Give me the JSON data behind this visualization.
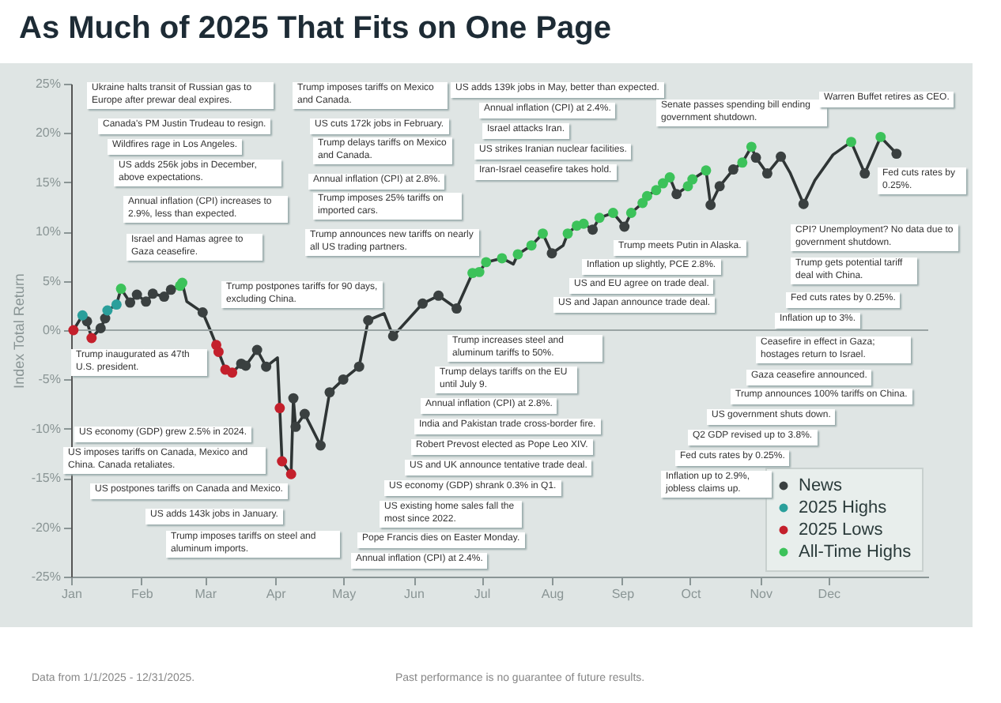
{
  "chart_data": {
    "type": "line",
    "title": "As Much of 2025 That Fits on One Page",
    "ylabel": "Index Total Return",
    "xlim": [
      "2025-01-01",
      "2026-01-14"
    ],
    "xticks": [
      {
        "value": "2025-01-01",
        "label": "Jan"
      },
      {
        "value": "2025-02-01",
        "label": "Feb"
      },
      {
        "value": "2025-03-01",
        "label": "Mar"
      },
      {
        "value": "2025-04-01",
        "label": "Apr"
      },
      {
        "value": "2025-05-01",
        "label": "May"
      },
      {
        "value": "2025-06-01",
        "label": "Jun"
      },
      {
        "value": "2025-07-01",
        "label": "Jul"
      },
      {
        "value": "2025-08-01",
        "label": "Aug"
      },
      {
        "value": "2025-09-01",
        "label": "Sep"
      },
      {
        "value": "2025-10-01",
        "label": "Oct"
      },
      {
        "value": "2025-11-01",
        "label": "Nov"
      },
      {
        "value": "2025-12-01",
        "label": "Dec"
      }
    ],
    "ylim": [
      -25,
      25
    ],
    "yticks": [
      {
        "value": -25,
        "label": "-25%"
      },
      {
        "value": -20,
        "label": "-20%"
      },
      {
        "value": -15,
        "label": "-15%"
      },
      {
        "value": -10,
        "label": "-10%"
      },
      {
        "value": -5,
        "label": "-5%"
      },
      {
        "value": 0,
        "label": "0%"
      },
      {
        "value": 5,
        "label": "5%"
      },
      {
        "value": 10,
        "label": "10%"
      },
      {
        "value": 15,
        "label": "15%"
      },
      {
        "value": 20,
        "label": "20%"
      },
      {
        "value": 25,
        "label": "25%"
      }
    ],
    "grid": false,
    "legend": "bottom right",
    "marker": "circle",
    "line_style": "solid",
    "ref_lines": [
      {
        "axis": "y",
        "value": 0,
        "color": "#9aa4a4"
      }
    ],
    "series": [
      {
        "type": "line",
        "color": "#2f3535",
        "marker": "none",
        "x": [
          "2025-01-02",
          "2025-01-06",
          "2025-01-08",
          "2025-01-10",
          "2025-01-14",
          "2025-01-16",
          "2025-01-17",
          "2025-01-21",
          "2025-01-23",
          "2025-01-27",
          "2025-01-30",
          "2025-02-03",
          "2025-02-06",
          "2025-02-11",
          "2025-02-14",
          "2025-02-18",
          "2025-02-19",
          "2025-02-21",
          "2025-02-28",
          "2025-03-03",
          "2025-03-06",
          "2025-03-07",
          "2025-03-10",
          "2025-03-13",
          "2025-03-17",
          "2025-03-19",
          "2025-03-24",
          "2025-03-28",
          "2025-04-02",
          "2025-04-03",
          "2025-04-04",
          "2025-04-08",
          "2025-04-09",
          "2025-04-10",
          "2025-04-14",
          "2025-04-21",
          "2025-04-25",
          "2025-05-01",
          "2025-05-08",
          "2025-05-12",
          "2025-05-19",
          "2025-05-23",
          "2025-06-05",
          "2025-06-12",
          "2025-06-20",
          "2025-06-27",
          "2025-06-30",
          "2025-07-03",
          "2025-07-10",
          "2025-07-15",
          "2025-07-17",
          "2025-07-23",
          "2025-07-28",
          "2025-08-01",
          "2025-08-06",
          "2025-08-08",
          "2025-08-12",
          "2025-08-15",
          "2025-08-19",
          "2025-08-22",
          "2025-08-28",
          "2025-09-02",
          "2025-09-05",
          "2025-09-10",
          "2025-09-12",
          "2025-09-16",
          "2025-09-19",
          "2025-09-22",
          "2025-09-25",
          "2025-09-30",
          "2025-10-02",
          "2025-10-08",
          "2025-10-10",
          "2025-10-14",
          "2025-10-20",
          "2025-10-24",
          "2025-10-28",
          "2025-10-30",
          "2025-11-04",
          "2025-11-10",
          "2025-11-14",
          "2025-11-20",
          "2025-11-25",
          "2025-12-03",
          "2025-12-11",
          "2025-12-17",
          "2025-12-24",
          "2025-12-31"
        ],
        "values": [
          0.0,
          1.5,
          0.9,
          -0.8,
          0.2,
          1.2,
          2.0,
          2.6,
          4.2,
          2.8,
          3.6,
          2.9,
          3.7,
          3.4,
          4.1,
          4.5,
          4.8,
          2.9,
          1.8,
          0.2,
          -1.5,
          -2.2,
          -4.0,
          -4.3,
          -3.4,
          -3.6,
          -2.0,
          -3.7,
          -2.8,
          -7.9,
          -13.3,
          -14.6,
          -6.9,
          -9.8,
          -8.5,
          -11.7,
          -6.3,
          -5.0,
          -3.7,
          1.0,
          1.7,
          -0.6,
          2.7,
          3.5,
          2.2,
          5.8,
          5.9,
          6.9,
          7.3,
          6.7,
          7.7,
          8.6,
          9.8,
          7.8,
          8.6,
          9.8,
          10.6,
          10.8,
          10.2,
          11.4,
          11.9,
          10.5,
          11.9,
          12.9,
          13.6,
          14.2,
          14.9,
          15.5,
          13.8,
          14.6,
          15.3,
          16.2,
          12.7,
          14.6,
          16.3,
          17.0,
          18.6,
          17.5,
          15.9,
          17.6,
          16.0,
          12.8,
          15.2,
          17.8,
          19.1,
          15.9,
          19.6,
          17.9
        ]
      },
      {
        "type": "scatter",
        "name": "News",
        "color": "#3a4040",
        "x": [
          "2025-01-08",
          "2025-01-14",
          "2025-01-16",
          "2025-01-27",
          "2025-01-30",
          "2025-02-03",
          "2025-02-06",
          "2025-02-11",
          "2025-02-14",
          "2025-02-28",
          "2025-03-17",
          "2025-03-19",
          "2025-03-24",
          "2025-03-28",
          "2025-04-09",
          "2025-04-10",
          "2025-04-14",
          "2025-04-21",
          "2025-04-25",
          "2025-05-01",
          "2025-05-08",
          "2025-05-12",
          "2025-05-23",
          "2025-06-05",
          "2025-06-12",
          "2025-06-20",
          "2025-08-01",
          "2025-08-19",
          "2025-09-02",
          "2025-09-25",
          "2025-10-10",
          "2025-10-14",
          "2025-10-20",
          "2025-10-30",
          "2025-11-04",
          "2025-11-10",
          "2025-11-20",
          "2025-12-17",
          "2025-12-31"
        ],
        "values": [
          0.9,
          0.2,
          1.2,
          2.8,
          3.6,
          2.9,
          3.7,
          3.4,
          4.1,
          1.8,
          -3.4,
          -3.6,
          -2.0,
          -3.7,
          -6.9,
          -9.8,
          -8.5,
          -11.7,
          -6.3,
          -5.0,
          -3.7,
          1.0,
          -0.6,
          2.7,
          3.5,
          2.2,
          7.8,
          10.2,
          10.5,
          13.8,
          12.7,
          14.6,
          16.3,
          17.5,
          15.9,
          17.6,
          12.8,
          15.9,
          17.9
        ]
      },
      {
        "type": "scatter",
        "name": "2025 Highs",
        "color": "#2a9f9b",
        "x": [
          "2025-01-06",
          "2025-01-17",
          "2025-01-21"
        ],
        "values": [
          1.5,
          2.0,
          2.6
        ]
      },
      {
        "type": "scatter",
        "name": "2025 Lows",
        "color": "#c4202c",
        "x": [
          "2025-01-02",
          "2025-01-10",
          "2025-03-06",
          "2025-03-07",
          "2025-03-10",
          "2025-03-13",
          "2025-04-03",
          "2025-04-04",
          "2025-04-08"
        ],
        "values": [
          0.0,
          -0.8,
          -1.5,
          -2.2,
          -4.0,
          -4.3,
          -7.9,
          -13.3,
          -14.6
        ]
      },
      {
        "type": "scatter",
        "name": "All-Time Highs",
        "color": "#3cc25a",
        "x": [
          "2025-01-23",
          "2025-02-18",
          "2025-02-19",
          "2025-06-27",
          "2025-06-30",
          "2025-07-03",
          "2025-07-10",
          "2025-07-17",
          "2025-07-23",
          "2025-07-28",
          "2025-08-08",
          "2025-08-12",
          "2025-08-15",
          "2025-08-22",
          "2025-08-28",
          "2025-09-05",
          "2025-09-10",
          "2025-09-12",
          "2025-09-16",
          "2025-09-19",
          "2025-09-22",
          "2025-09-30",
          "2025-10-02",
          "2025-10-08",
          "2025-10-24",
          "2025-10-28",
          "2025-12-11",
          "2025-12-24"
        ],
        "values": [
          4.2,
          4.5,
          4.8,
          5.8,
          5.9,
          6.9,
          7.3,
          7.7,
          8.6,
          9.8,
          9.8,
          10.6,
          10.8,
          11.4,
          11.9,
          11.9,
          12.9,
          13.6,
          14.2,
          14.9,
          15.5,
          14.6,
          15.3,
          16.2,
          17.0,
          18.6,
          19.1,
          19.6
        ]
      }
    ],
    "annotations": [
      "Ukraine halts transit of Russian gas to Europe after prewar deal expires.",
      "Canada's PM Justin Trudeau to resign.",
      "Wildfires rage in Los Angeles.",
      "US adds 256k jobs in December, above expectations.",
      "Annual inflation (CPI) increases to 2.9%, less than expected.",
      "Israel and Hamas agree to Gaza ceasefire.",
      "Trump inaugurated as 47th U.S. president.",
      "US economy (GDP) grew 2.5% in 2024.",
      "US imposes tariffs on Canada, Mexico and China. Canada retaliates.",
      "US postpones tariffs on Canada and Mexico.",
      "US adds 143k jobs in January.",
      "Trump imposes tariffs on steel and aluminum imports.",
      "Trump imposes tariffs on Mexico and Canada.",
      "US cuts 172k jobs in February.",
      "Trump delays tariffs on Mexico and Canada.",
      "Annual inflation (CPI) at 2.8%.",
      "Trump imposes 25% tariffs on imported cars.",
      "Trump announces new tariffs on nearly all US trading partners.",
      "Trump postpones tariffs for 90 days, excluding China.",
      "Trump increases steel and aluminum tariffs to 50%.",
      "Trump delays tariffs on the EU until July 9.",
      "Annual inflation (CPI) at 2.8%.",
      "India and Pakistan trade cross-border fire.",
      "Robert Prevost elected as Pope Leo XIV.",
      "US and UK announce tentative trade deal.",
      "US economy (GDP) shrank 0.3% in Q1.",
      "US existing home sales fall the most since 2022.",
      "Pope Francis dies on Easter Monday.",
      "Annual inflation (CPI) at 2.4%.",
      "US adds 139k jobs in May, better than expected.",
      "Annual inflation (CPI) at 2.4%.",
      "Israel attacks Iran.",
      "US strikes Iranian nuclear facilities.",
      "Iran-Israel ceasefire takes hold.",
      "Senate passes spending bill ending government shutdown.",
      "Warren Buffet retires as CEO.",
      "Trump meets Putin in Alaska.",
      "Inflation up slightly, PCE 2.8%.",
      "US and EU agree on trade deal.",
      "US and Japan announce trade deal.",
      "Fed cuts rates by 0.25%.",
      "CPI? Unemployment? No data due to government shutdown.",
      "Trump gets potential tariff deal with China.",
      "Fed cuts rates by 0.25%.",
      "Inflation up to 3%.",
      "Ceasefire in effect in Gaza; hostages return to Israel.",
      "Gaza ceasefire announced.",
      "Trump announces 100% tariffs on China.",
      "US government shuts down.",
      "Q2 GDP revised up to 3.8%.",
      "Fed cuts rates by 0.25%.",
      "Inflation up to 2.9%, jobless claims up.",
      "Data from 1/1/2025 - 12/31/2025.",
      "Past performance is no guarantee of future results."
    ]
  }
}
